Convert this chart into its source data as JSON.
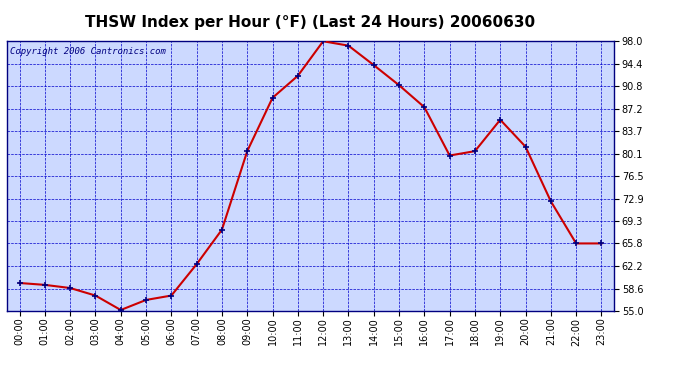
{
  "title": "THSW Index per Hour (°F) (Last 24 Hours) 20060630",
  "copyright": "Copyright 2006 Cantronics.com",
  "hours": [
    0,
    1,
    2,
    3,
    4,
    5,
    6,
    7,
    8,
    9,
    10,
    11,
    12,
    13,
    14,
    15,
    16,
    17,
    18,
    19,
    20,
    21,
    22,
    23
  ],
  "x_labels": [
    "00:00",
    "01:00",
    "02:00",
    "03:00",
    "04:00",
    "05:00",
    "06:00",
    "07:00",
    "08:00",
    "09:00",
    "10:00",
    "11:00",
    "12:00",
    "13:00",
    "14:00",
    "15:00",
    "16:00",
    "17:00",
    "18:00",
    "19:00",
    "20:00",
    "21:00",
    "22:00",
    "23:00"
  ],
  "values": [
    59.5,
    59.2,
    58.7,
    57.5,
    55.2,
    56.8,
    57.5,
    62.5,
    68.0,
    80.5,
    89.0,
    92.5,
    98.0,
    97.3,
    94.2,
    91.0,
    87.5,
    79.8,
    80.5,
    85.5,
    81.2,
    72.5,
    65.8,
    65.8
  ],
  "ylim": [
    55.0,
    98.0
  ],
  "yticks": [
    55.0,
    58.6,
    62.2,
    65.8,
    69.3,
    72.9,
    76.5,
    80.1,
    83.7,
    87.2,
    90.8,
    94.4,
    98.0
  ],
  "line_color": "#cc0000",
  "marker_color": "#000080",
  "bg_color": "#ccd9ff",
  "grid_color": "#0000cc",
  "title_fontsize": 11,
  "copyright_fontsize": 6.5,
  "outer_bg": "#ffffff"
}
